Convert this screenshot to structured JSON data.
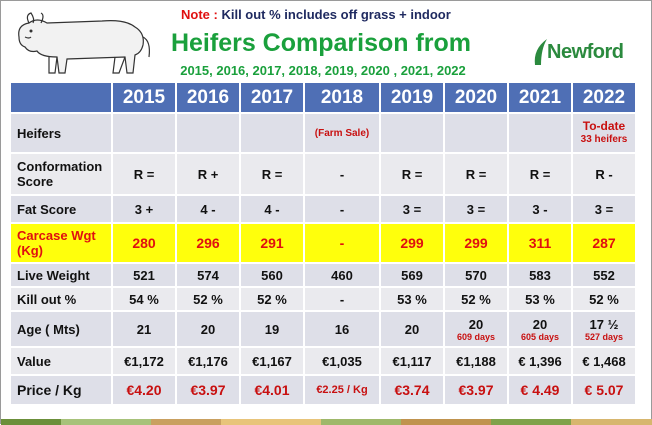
{
  "note": {
    "label": "Note :",
    "text": "Kill out % includes off grass + indoor"
  },
  "title": "Heifers Comparison from",
  "subtitle": "2015, 2016, 2017, 2018, 2019, 2020 , 2021, 2022",
  "logo": {
    "text": "Newford",
    "icon": "leaf-icon",
    "color": "#2b8a3e"
  },
  "illustration": "cow-icon",
  "colors": {
    "header_bg": "#4f6fb5",
    "row_bg": "#dedfe8",
    "highlight": "#ffff0c",
    "accent_red": "#c81010",
    "title_green": "#1aa03c"
  },
  "table": {
    "years": [
      "2015",
      "2016",
      "2017",
      "2018",
      "2019",
      "2020",
      "2021",
      "2022"
    ],
    "rows": [
      {
        "label": "Heifers",
        "values": [
          "",
          "",
          "",
          "(Farm Sale)",
          "",
          "",
          "",
          "To-date"
        ],
        "extra": "33 heifers"
      },
      {
        "label": "Conformation Score",
        "values": [
          "R =",
          "R +",
          "R =",
          "-",
          "R =",
          "R =",
          "R =",
          "R -"
        ]
      },
      {
        "label": "Fat Score",
        "values": [
          "3 +",
          "4 -",
          "4 -",
          "-",
          "3 =",
          "3 =",
          "3 -",
          "3 ="
        ]
      },
      {
        "label": "Carcase Wgt (Kg)",
        "values": [
          "280",
          "296",
          "291",
          "-",
          "299",
          "299",
          "311",
          "287"
        ]
      },
      {
        "label": "Live Weight",
        "values": [
          "521",
          "574",
          "560",
          "460",
          "569",
          "570",
          "583",
          "552"
        ]
      },
      {
        "label": "Kill out %",
        "values": [
          "54 %",
          "52 %",
          "52 %",
          "-",
          "53 %",
          "52 %",
          "53 %",
          "52 %"
        ]
      },
      {
        "label": "Age ( Mts)",
        "values": [
          "21",
          "20",
          "19",
          "16",
          "20",
          "20",
          "20",
          "17 ½"
        ],
        "notes": [
          "",
          "",
          "",
          "",
          "",
          "609 days",
          "605 days",
          "527 days"
        ]
      },
      {
        "label": "Value",
        "values": [
          "€1,172",
          "€1,176",
          "€1,167",
          "€1,035",
          "€1,117",
          "€1,188",
          "€ 1,396",
          "€ 1,468"
        ]
      },
      {
        "label": "Price / Kg",
        "values": [
          "€4.20",
          "€3.97",
          "€4.01",
          "€2.25 / Kg",
          "€3.74",
          "€3.97",
          "€ 4.49",
          "€ 5.07"
        ]
      }
    ]
  }
}
